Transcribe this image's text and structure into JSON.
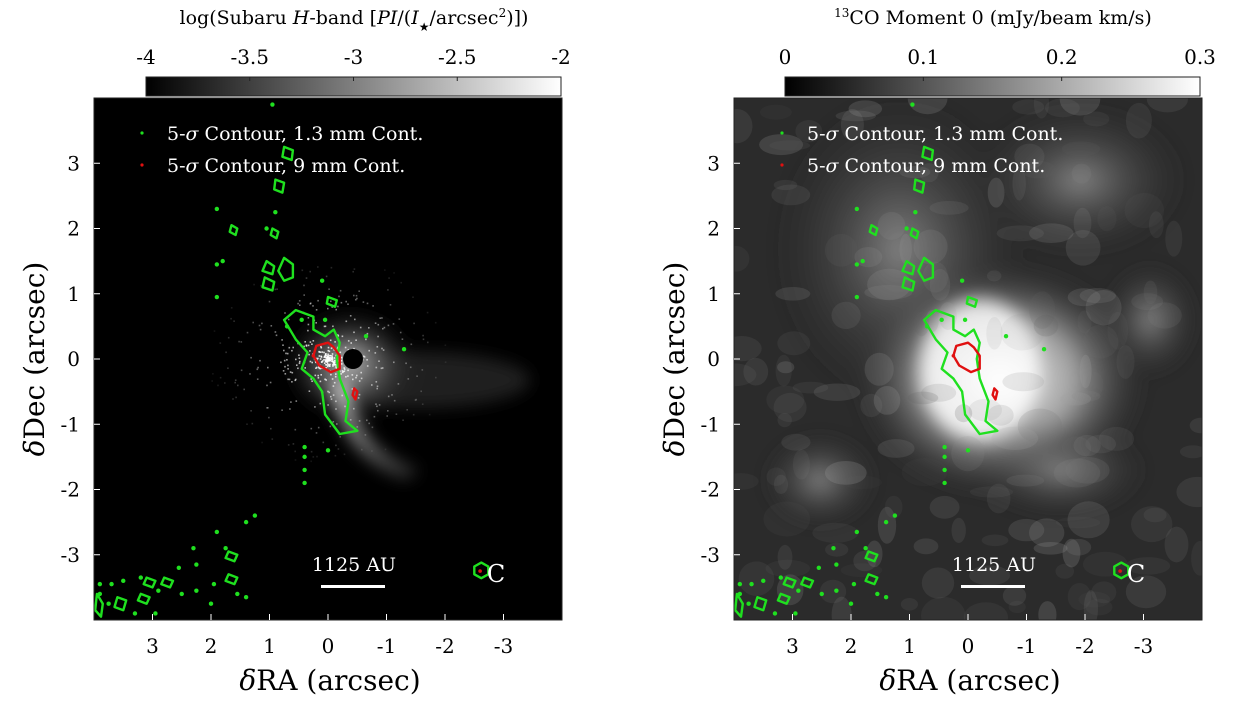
{
  "chart_data": [
    {
      "type": "heatmap",
      "title": "log(Subaru H-band [PI/(I★/arcsec²)])",
      "title_parts": [
        "log(Subaru ",
        "H",
        "-band [",
        "PI",
        "/(",
        "I",
        "★",
        "/arcsec",
        "2",
        ")])"
      ],
      "colorbar": {
        "colormap": "gray",
        "range": [
          -4,
          -2
        ],
        "ticks": [
          "-4",
          "-3.5",
          "-3",
          "-2.5",
          "-2"
        ]
      },
      "xlabel": "δRA (arcsec)",
      "ylabel": "δDec (arcsec)",
      "xlim": [
        4,
        -4
      ],
      "ylim": [
        -4,
        4
      ],
      "xticks": [
        "3",
        "2",
        "1",
        "0",
        "-1",
        "-2",
        "-3"
      ],
      "yticks": [
        "3",
        "2",
        "1",
        "0",
        "-1",
        "-2",
        "-3"
      ],
      "background": "black",
      "features": {
        "scattered_light_center": [
          0.0,
          0.0
        ],
        "coronagraph_mask_radius_arcsec": 0.15,
        "tail_end": [
          -0.9,
          -1.7
        ]
      },
      "legend": [
        {
          "label": "5-σ Contour, 1.3 mm Cont.",
          "color": "#1fe01f"
        },
        {
          "label": "5-σ Contour, 9 mm Cont.",
          "color": "#e01010"
        }
      ],
      "scalebar_label": "1125 AU",
      "source_label": "C",
      "source_c_position": [
        -2.6,
        -3.25
      ]
    },
    {
      "type": "heatmap",
      "title": "13CO Moment 0 (mJy/beam km/s)",
      "title_parts": [
        "13",
        "CO Moment 0 (mJy/beam km/s)"
      ],
      "colorbar": {
        "colormap": "gray",
        "range": [
          0,
          0.3
        ],
        "ticks": [
          "0",
          "0.1",
          "0.2",
          "0.3"
        ]
      },
      "xlabel": "δRA (arcsec)",
      "ylabel": "δDec (arcsec)",
      "xlim": [
        4,
        -4
      ],
      "ylim": [
        -4,
        4
      ],
      "xticks": [
        "3",
        "2",
        "1",
        "0",
        "-1",
        "-2",
        "-3"
      ],
      "yticks": [
        "3",
        "2",
        "1",
        "0",
        "-1",
        "-2",
        "-3"
      ],
      "background": "gray emission",
      "legend": [
        {
          "label": "5-σ Contour, 1.3 mm Cont.",
          "color": "#1fe01f"
        },
        {
          "label": "5-σ Contour, 9 mm Cont.",
          "color": "#e01010"
        }
      ],
      "scalebar_label": "1125 AU",
      "source_label": "C",
      "source_c_position": [
        -2.6,
        -3.25
      ]
    }
  ],
  "contours_1p3mm": [
    {
      "points": [
        [
          0.55,
          0.75
        ],
        [
          0.25,
          0.65
        ],
        [
          0.25,
          0.45
        ],
        [
          0.05,
          0.35
        ],
        [
          -0.1,
          0.45
        ],
        [
          -0.2,
          0.25
        ],
        [
          -0.15,
          0.0
        ],
        [
          -0.2,
          -0.3
        ],
        [
          -0.35,
          -0.65
        ],
        [
          -0.3,
          -0.95
        ],
        [
          -0.5,
          -1.1
        ],
        [
          -0.2,
          -1.15
        ],
        [
          0.05,
          -0.85
        ],
        [
          0.1,
          -0.5
        ],
        [
          0.25,
          -0.3
        ],
        [
          0.45,
          -0.15
        ],
        [
          0.35,
          0.1
        ],
        [
          0.55,
          0.3
        ],
        [
          0.75,
          0.6
        ]
      ]
    },
    {
      "points": [
        [
          0.75,
          1.55
        ],
        [
          0.6,
          1.45
        ],
        [
          0.6,
          1.25
        ],
        [
          0.75,
          1.2
        ],
        [
          0.85,
          1.35
        ]
      ]
    },
    {
      "points": [
        [
          1.05,
          1.5
        ],
        [
          0.92,
          1.42
        ],
        [
          0.95,
          1.3
        ],
        [
          1.12,
          1.35
        ]
      ]
    },
    {
      "points": [
        [
          1.08,
          1.25
        ],
        [
          0.92,
          1.18
        ],
        [
          0.95,
          1.05
        ],
        [
          1.12,
          1.1
        ]
      ]
    },
    {
      "points": [
        [
          0.95,
          2.0
        ],
        [
          0.85,
          1.95
        ],
        [
          0.88,
          1.85
        ],
        [
          0.98,
          1.9
        ]
      ]
    },
    {
      "points": [
        [
          1.65,
          2.05
        ],
        [
          1.55,
          2.0
        ],
        [
          1.58,
          1.9
        ],
        [
          1.68,
          1.95
        ]
      ]
    },
    {
      "points": [
        [
          0.9,
          2.75
        ],
        [
          0.75,
          2.7
        ],
        [
          0.78,
          2.55
        ],
        [
          0.92,
          2.6
        ]
      ]
    },
    {
      "points": [
        [
          0.75,
          3.25
        ],
        [
          0.6,
          3.2
        ],
        [
          0.62,
          3.05
        ],
        [
          0.78,
          3.1
        ]
      ]
    },
    {
      "points": [
        [
          0.0,
          0.95
        ],
        [
          -0.15,
          0.9
        ],
        [
          -0.12,
          0.8
        ],
        [
          0.02,
          0.85
        ]
      ]
    },
    {
      "points": [
        [
          1.7,
          -2.95
        ],
        [
          1.55,
          -3.0
        ],
        [
          1.6,
          -3.1
        ],
        [
          1.75,
          -3.05
        ]
      ]
    },
    {
      "points": [
        [
          1.7,
          -3.3
        ],
        [
          1.55,
          -3.35
        ],
        [
          1.6,
          -3.45
        ],
        [
          1.75,
          -3.4
        ]
      ]
    },
    {
      "points": [
        [
          3.1,
          -3.35
        ],
        [
          2.95,
          -3.4
        ],
        [
          3.0,
          -3.5
        ],
        [
          3.15,
          -3.45
        ]
      ]
    },
    {
      "points": [
        [
          2.8,
          -3.35
        ],
        [
          2.65,
          -3.4
        ],
        [
          2.7,
          -3.5
        ],
        [
          2.85,
          -3.45
        ]
      ]
    },
    {
      "points": [
        [
          3.6,
          -3.65
        ],
        [
          3.45,
          -3.7
        ],
        [
          3.5,
          -3.85
        ],
        [
          3.65,
          -3.8
        ]
      ]
    },
    {
      "points": [
        [
          3.2,
          -3.6
        ],
        [
          3.05,
          -3.65
        ],
        [
          3.1,
          -3.75
        ],
        [
          3.25,
          -3.7
        ]
      ]
    },
    {
      "points": [
        [
          3.95,
          -3.6
        ],
        [
          3.85,
          -3.75
        ],
        [
          3.88,
          -3.95
        ],
        [
          3.98,
          -3.85
        ]
      ]
    },
    {
      "points": [
        [
          -2.5,
          -3.18
        ],
        [
          -2.62,
          -3.12
        ],
        [
          -2.74,
          -3.18
        ],
        [
          -2.74,
          -3.3
        ],
        [
          -2.62,
          -3.36
        ],
        [
          -2.5,
          -3.3
        ]
      ]
    }
  ],
  "contours_1p3mm_dots": [
    [
      0.95,
      3.9
    ],
    [
      1.8,
      1.5
    ],
    [
      1.9,
      1.45
    ],
    [
      0.9,
      2.25
    ],
    [
      1.05,
      2.0
    ],
    [
      1.9,
      0.95
    ],
    [
      0.05,
      0.6
    ],
    [
      -1.3,
      0.15
    ],
    [
      -0.65,
      0.35
    ],
    [
      0.7,
      0.5
    ],
    [
      0.45,
      0.6
    ],
    [
      0.0,
      -1.4
    ],
    [
      0.4,
      -1.35
    ],
    [
      0.4,
      -1.5
    ],
    [
      0.4,
      -1.7
    ],
    [
      0.4,
      -1.9
    ],
    [
      1.25,
      -2.4
    ],
    [
      1.4,
      -2.5
    ],
    [
      1.9,
      -2.65
    ],
    [
      1.75,
      -2.9
    ],
    [
      2.3,
      -2.9
    ],
    [
      2.25,
      -3.15
    ],
    [
      2.55,
      -3.2
    ],
    [
      2.25,
      -3.55
    ],
    [
      1.95,
      -3.45
    ],
    [
      2.0,
      -3.75
    ],
    [
      1.55,
      -3.6
    ],
    [
      1.4,
      -3.65
    ],
    [
      2.5,
      -3.6
    ],
    [
      2.9,
      -3.55
    ],
    [
      3.2,
      -3.35
    ],
    [
      3.5,
      -3.4
    ],
    [
      3.7,
      -3.45
    ],
    [
      3.75,
      -3.75
    ],
    [
      3.9,
      -3.45
    ],
    [
      3.9,
      -3.6
    ],
    [
      2.95,
      -3.9
    ],
    [
      3.3,
      -3.9
    ],
    [
      0.1,
      1.2
    ],
    [
      1.9,
      2.3
    ]
  ],
  "contours_9mm": [
    {
      "points": [
        [
          0.2,
          0.2
        ],
        [
          0.0,
          0.25
        ],
        [
          -0.1,
          0.18
        ],
        [
          -0.2,
          0.05
        ],
        [
          -0.2,
          -0.15
        ],
        [
          -0.05,
          -0.2
        ],
        [
          0.15,
          -0.1
        ],
        [
          0.25,
          0.05
        ]
      ]
    },
    {
      "points": [
        [
          -0.45,
          -0.45
        ],
        [
          -0.5,
          -0.5
        ],
        [
          -0.47,
          -0.62
        ],
        [
          -0.42,
          -0.55
        ]
      ]
    }
  ],
  "contours_9mm_dots": [
    [
      0.25,
      0.05
    ],
    [
      -2.6,
      -3.25
    ]
  ]
}
